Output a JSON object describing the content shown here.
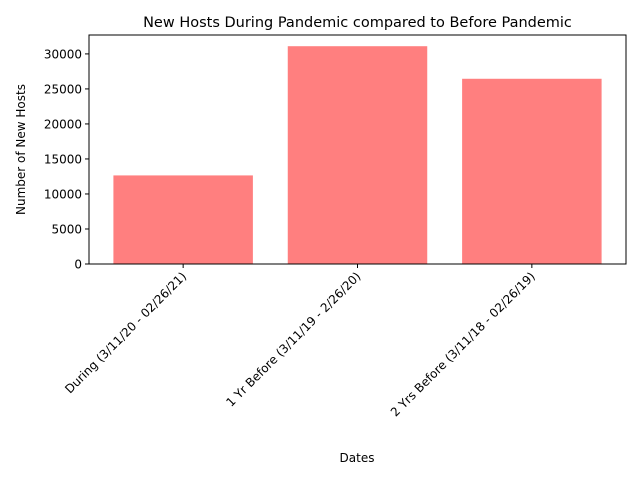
{
  "chart_data": {
    "type": "bar",
    "title": "New Hosts During Pandemic compared to Before Pandemic",
    "xlabel": "Dates",
    "ylabel": "Number of New Hosts",
    "categories": [
      "During (3/11/20 - 02/26/21)",
      "1 Yr Before (3/11/19 - 2/26/20)",
      "2 Yrs Before (3/11/18 - 02/26/19)"
    ],
    "values": [
      12650,
      31100,
      26450
    ],
    "ylim": [
      0,
      32700
    ],
    "yticks": [
      0,
      5000,
      10000,
      15000,
      20000,
      25000,
      30000
    ],
    "bar_color": "#ff7f7f",
    "grid": false,
    "legend": false
  }
}
